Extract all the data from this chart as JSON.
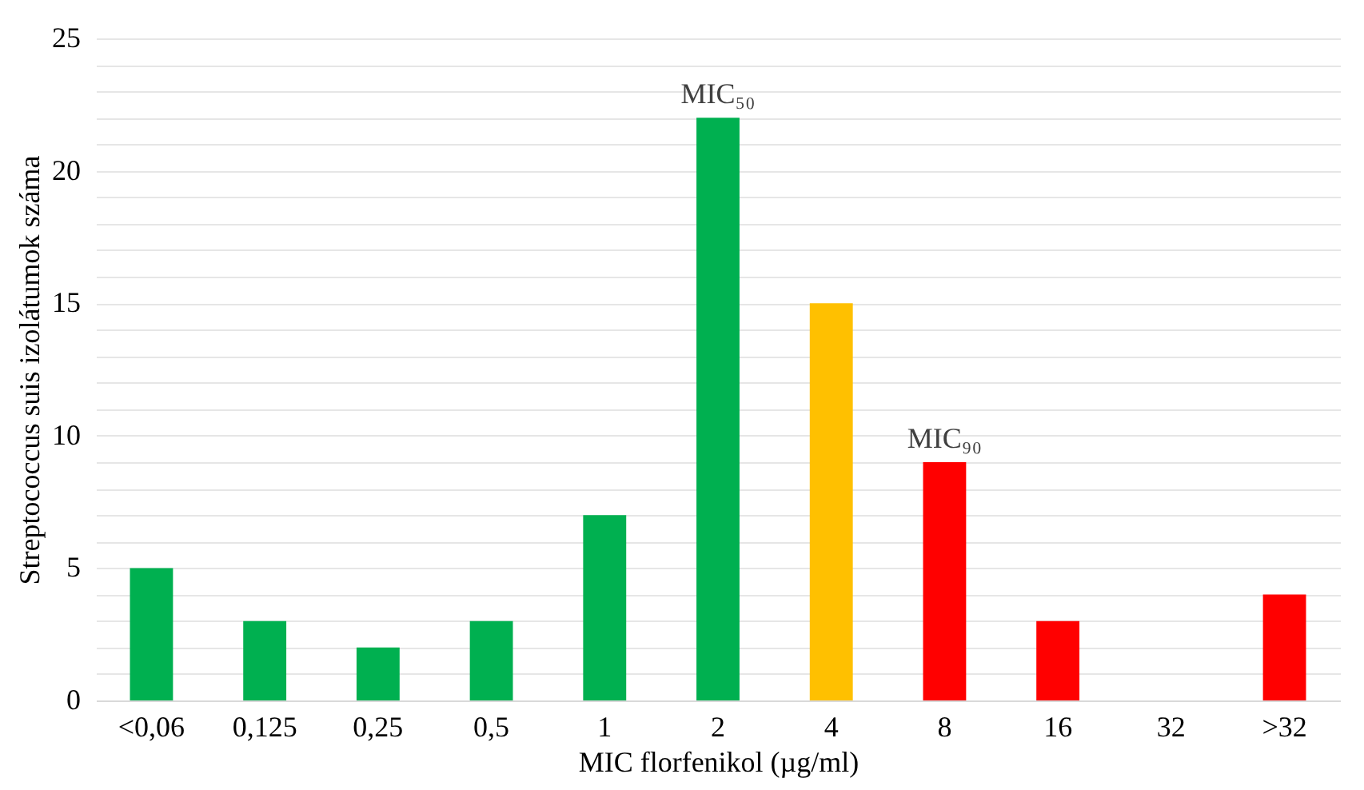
{
  "chart_data": {
    "type": "bar",
    "categories": [
      "<0,06",
      "0,125",
      "0,25",
      "0,5",
      "1",
      "2",
      "4",
      "8",
      "16",
      "32",
      ">32"
    ],
    "values": [
      5,
      3,
      2,
      3,
      7,
      22,
      15,
      9,
      3,
      0,
      4
    ],
    "colors": [
      "#00b050",
      "#00b050",
      "#00b050",
      "#00b050",
      "#00b050",
      "#00b050",
      "#ffc000",
      "#ff0000",
      "#ff0000",
      "#ff0000",
      "#ff0000"
    ],
    "xlabel": "MIC florfenikol (µg/ml)",
    "ylabel": "Streptococcus suis izolátumok száma",
    "ylim": [
      0,
      25
    ],
    "yticks": [
      0,
      {
        "value": 1,
        "label": null
      },
      {
        "value": 2,
        "label": null
      },
      {
        "value": 3,
        "label": null
      },
      {
        "value": 4,
        "label": null
      },
      5,
      {
        "value": 6,
        "label": null
      },
      {
        "value": 7,
        "label": null
      },
      {
        "value": 8,
        "label": null
      },
      {
        "value": 9,
        "label": null
      },
      10,
      {
        "value": 11,
        "label": null
      },
      {
        "value": 12,
        "label": null
      },
      {
        "value": 13,
        "label": null
      },
      {
        "value": 14,
        "label": null
      },
      15,
      {
        "value": 16,
        "label": null
      },
      {
        "value": 17,
        "label": null
      },
      {
        "value": 18,
        "label": null
      },
      {
        "value": 19,
        "label": null
      },
      20,
      {
        "value": 21,
        "label": null
      },
      {
        "value": 22,
        "label": null
      },
      {
        "value": 23,
        "label": null
      },
      {
        "value": 24,
        "label": null
      },
      25
    ],
    "grid": "y",
    "annotations": [
      {
        "text": "MIC₅₀",
        "x": "2",
        "y": 22
      },
      {
        "text": "MIC₉₀",
        "x": "8",
        "y": 9
      }
    ]
  }
}
